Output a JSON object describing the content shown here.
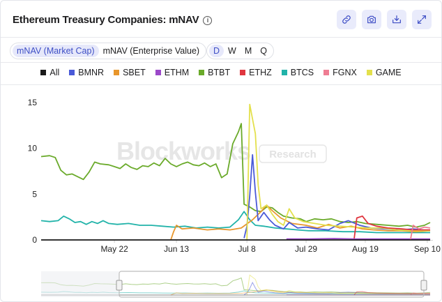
{
  "header": {
    "title": "Ethereum Treasury Companies: mNAV",
    "info_icon": "info-icon"
  },
  "toolbar": {
    "icons": [
      "link-icon",
      "camera-icon",
      "download-icon",
      "expand-icon"
    ]
  },
  "metric_toggle": {
    "options": [
      "mNAV (Market Cap)",
      "mNAV (Enterprise Value)"
    ],
    "selected": "mNAV (Market Cap)"
  },
  "interval_toggle": {
    "options": [
      "D",
      "W",
      "M",
      "Q"
    ],
    "selected": "D"
  },
  "legend": [
    {
      "label": "All",
      "color": "#1a1a1a"
    },
    {
      "label": "BMNR",
      "color": "#4a5ad8"
    },
    {
      "label": "SBET",
      "color": "#e8962c"
    },
    {
      "label": "ETHM",
      "color": "#9b48c9"
    },
    {
      "label": "BTBT",
      "color": "#6aaa2a"
    },
    {
      "label": "ETHZ",
      "color": "#e0363f"
    },
    {
      "label": "BTCS",
      "color": "#21b3a9"
    },
    {
      "label": "FGNX",
      "color": "#ef7d93"
    },
    {
      "label": "GAME",
      "color": "#e3e04c"
    }
  ],
  "watermark": {
    "brand": "Blockworks",
    "tag": "Research"
  },
  "chart_data": {
    "type": "line",
    "x_ticks": [
      "May 22",
      "Jun 13",
      "Jul 8",
      "Jul 29",
      "Aug 19",
      "Sep 10"
    ],
    "y_ticks": [
      "0",
      "5",
      "10",
      "15"
    ],
    "ylim": [
      0,
      15
    ],
    "x_domain": [
      "Apr 26",
      "Sep 12"
    ],
    "grid": false,
    "series": [
      {
        "name": "BTBT",
        "color": "#6aaa2a",
        "points": [
          [
            "Apr 26",
            9.1
          ],
          [
            "Apr 29",
            9.2
          ],
          [
            "May 1",
            9.0
          ],
          [
            "May 3",
            7.6
          ],
          [
            "May 5",
            7.1
          ],
          [
            "May 7",
            7.2
          ],
          [
            "May 9",
            6.9
          ],
          [
            "May 11",
            6.6
          ],
          [
            "May 13",
            7.4
          ],
          [
            "May 15",
            8.5
          ],
          [
            "May 17",
            8.3
          ],
          [
            "May 20",
            8.2
          ],
          [
            "May 22",
            8.0
          ],
          [
            "May 24",
            7.8
          ],
          [
            "May 26",
            8.3
          ],
          [
            "May 28",
            7.9
          ],
          [
            "May 30",
            7.7
          ],
          [
            "Jun 1",
            8.1
          ],
          [
            "Jun 3",
            8.0
          ],
          [
            "Jun 5",
            8.4
          ],
          [
            "Jun 7",
            8.1
          ],
          [
            "Jun 9",
            8.9
          ],
          [
            "Jun 11",
            8.3
          ],
          [
            "Jun 13",
            8.0
          ],
          [
            "Jun 15",
            8.3
          ],
          [
            "Jun 17",
            8.5
          ],
          [
            "Jun 19",
            8.2
          ],
          [
            "Jun 21",
            8.1
          ],
          [
            "Jun 23",
            8.4
          ],
          [
            "Jun 25",
            8.0
          ],
          [
            "Jun 27",
            8.3
          ],
          [
            "Jun 29",
            6.8
          ],
          [
            "Jul 1",
            7.2
          ],
          [
            "Jul 3",
            10.5
          ],
          [
            "Jul 5",
            11.8
          ],
          [
            "Jul 6",
            12.7
          ],
          [
            "Jul 7",
            3.9
          ],
          [
            "Jul 9",
            3.6
          ],
          [
            "Jul 11",
            3.2
          ],
          [
            "Jul 13",
            3.1
          ],
          [
            "Jul 15",
            3.6
          ],
          [
            "Jul 17",
            3.5
          ],
          [
            "Jul 19",
            3.0
          ],
          [
            "Jul 21",
            2.6
          ],
          [
            "Jul 24",
            2.4
          ],
          [
            "Jul 27",
            2.3
          ],
          [
            "Jul 29",
            2.0
          ],
          [
            "Aug 1",
            2.3
          ],
          [
            "Aug 4",
            2.2
          ],
          [
            "Aug 7",
            2.3
          ],
          [
            "Aug 10",
            2.0
          ],
          [
            "Aug 13",
            1.9
          ],
          [
            "Aug 16",
            2.0
          ],
          [
            "Aug 19",
            1.8
          ],
          [
            "Aug 23",
            1.7
          ],
          [
            "Aug 27",
            1.6
          ],
          [
            "Aug 31",
            1.5
          ],
          [
            "Sep 3",
            1.6
          ],
          [
            "Sep 6",
            1.4
          ],
          [
            "Sep 9",
            1.6
          ],
          [
            "Sep 11",
            1.9
          ]
        ]
      },
      {
        "name": "BTCS",
        "color": "#21b3a9",
        "points": [
          [
            "Apr 26",
            2.1
          ],
          [
            "Apr 29",
            2.0
          ],
          [
            "May 2",
            2.1
          ],
          [
            "May 4",
            2.6
          ],
          [
            "May 6",
            2.3
          ],
          [
            "May 8",
            1.9
          ],
          [
            "May 10",
            2.0
          ],
          [
            "May 12",
            1.7
          ],
          [
            "May 14",
            2.0
          ],
          [
            "May 16",
            1.8
          ],
          [
            "May 18",
            2.1
          ],
          [
            "May 20",
            1.8
          ],
          [
            "May 23",
            1.7
          ],
          [
            "May 27",
            1.8
          ],
          [
            "May 31",
            1.6
          ],
          [
            "Jun 4",
            1.6
          ],
          [
            "Jun 8",
            1.5
          ],
          [
            "Jun 12",
            1.4
          ],
          [
            "Jun 16",
            1.5
          ],
          [
            "Jun 20",
            1.3
          ],
          [
            "Jun 24",
            1.4
          ],
          [
            "Jun 28",
            1.3
          ],
          [
            "Jul 2",
            1.4
          ],
          [
            "Jul 5",
            2.2
          ],
          [
            "Jul 7",
            3.1
          ],
          [
            "Jul 9",
            2.2
          ],
          [
            "Jul 11",
            1.6
          ],
          [
            "Jul 14",
            1.5
          ],
          [
            "Jul 18",
            1.3
          ],
          [
            "Jul 22",
            1.2
          ],
          [
            "Jul 26",
            1.1
          ],
          [
            "Jul 30",
            1.0
          ],
          [
            "Aug 5",
            1.0
          ],
          [
            "Aug 11",
            0.9
          ],
          [
            "Aug 17",
            0.9
          ],
          [
            "Aug 23",
            0.8
          ],
          [
            "Aug 29",
            0.8
          ],
          [
            "Sep 4",
            0.8
          ],
          [
            "Sep 11",
            0.8
          ]
        ]
      },
      {
        "name": "SBET",
        "color": "#e8962c",
        "points": [
          [
            "Jun 11",
            0.0
          ],
          [
            "Jun 12",
            0.9
          ],
          [
            "Jun 13",
            1.6
          ],
          [
            "Jun 15",
            1.2
          ],
          [
            "Jun 19",
            1.3
          ],
          [
            "Jun 24",
            1.1
          ],
          [
            "Jun 28",
            1.2
          ],
          [
            "Jul 2",
            1.1
          ],
          [
            "Jul 6",
            1.3
          ],
          [
            "Jul 10",
            2.2
          ],
          [
            "Jul 13",
            3.1
          ],
          [
            "Jul 15",
            3.8
          ],
          [
            "Jul 17",
            3.2
          ],
          [
            "Jul 20",
            2.4
          ],
          [
            "Jul 24",
            1.8
          ],
          [
            "Jul 29",
            1.6
          ],
          [
            "Aug 2",
            1.3
          ],
          [
            "Aug 6",
            1.7
          ],
          [
            "Aug 10",
            1.3
          ],
          [
            "Aug 14",
            1.5
          ],
          [
            "Aug 18",
            1.2
          ],
          [
            "Aug 22",
            1.1
          ],
          [
            "Aug 27",
            1.0
          ],
          [
            "Sep 1",
            1.0
          ],
          [
            "Sep 6",
            0.9
          ],
          [
            "Sep 11",
            1.0
          ]
        ]
      },
      {
        "name": "BMNR",
        "color": "#4a5ad8",
        "points": [
          [
            "Jul 7",
            0.2
          ],
          [
            "Jul 8",
            1.5
          ],
          [
            "Jul 9",
            4.8
          ],
          [
            "Jul 10",
            9.3
          ],
          [
            "Jul 11",
            5.2
          ],
          [
            "Jul 12",
            2.1
          ],
          [
            "Jul 14",
            3.0
          ],
          [
            "Jul 16",
            2.2
          ],
          [
            "Jul 18",
            1.6
          ],
          [
            "Jul 21",
            1.2
          ],
          [
            "Jul 23",
            1.9
          ],
          [
            "Jul 26",
            1.3
          ],
          [
            "Jul 29",
            1.4
          ],
          [
            "Aug 2",
            1.2
          ],
          [
            "Aug 6",
            1.1
          ],
          [
            "Aug 10",
            1.8
          ],
          [
            "Aug 13",
            2.1
          ],
          [
            "Aug 17",
            1.6
          ],
          [
            "Aug 21",
            1.3
          ],
          [
            "Aug 26",
            1.2
          ],
          [
            "Aug 31",
            1.1
          ],
          [
            "Sep 5",
            1.2
          ],
          [
            "Sep 11",
            1.0
          ]
        ]
      },
      {
        "name": "GAME",
        "color": "#e3e04c",
        "points": [
          [
            "Jul 8",
            0.0
          ],
          [
            "Jul 9",
            14.8
          ],
          [
            "Jul 10",
            13.2
          ],
          [
            "Jul 11",
            11.6
          ],
          [
            "Jul 12",
            6.0
          ],
          [
            "Jul 13",
            3.4
          ],
          [
            "Jul 15",
            3.8
          ],
          [
            "Jul 17",
            2.8
          ],
          [
            "Jul 19",
            2.0
          ],
          [
            "Jul 21",
            1.6
          ],
          [
            "Jul 23",
            3.4
          ],
          [
            "Jul 25",
            2.4
          ],
          [
            "Jul 28",
            2.0
          ],
          [
            "Aug 1",
            1.8
          ],
          [
            "Aug 5",
            1.6
          ],
          [
            "Aug 10",
            1.5
          ],
          [
            "Aug 15",
            1.4
          ],
          [
            "Aug 20",
            1.3
          ],
          [
            "Aug 25",
            1.3
          ],
          [
            "Aug 30",
            1.1
          ],
          [
            "Sep 4",
            1.0
          ],
          [
            "Sep 11",
            1.0
          ]
        ]
      },
      {
        "name": "ETHZ",
        "color": "#e0363f",
        "points": [
          [
            "Aug 15",
            0.0
          ],
          [
            "Aug 16",
            2.4
          ],
          [
            "Aug 18",
            2.6
          ],
          [
            "Aug 20",
            1.8
          ],
          [
            "Aug 23",
            1.5
          ],
          [
            "Aug 27",
            1.3
          ],
          [
            "Sep 1",
            1.2
          ],
          [
            "Sep 5",
            1.1
          ],
          [
            "Sep 11",
            1.1
          ]
        ]
      },
      {
        "name": "ETHM",
        "color": "#9b48c9",
        "points": [
          [
            "Jul 22",
            0.1
          ],
          [
            "Jul 30",
            0.1
          ],
          [
            "Aug 8",
            0.15
          ],
          [
            "Aug 16",
            0.1
          ],
          [
            "Aug 24",
            0.1
          ],
          [
            "Sep 1",
            0.1
          ],
          [
            "Sep 11",
            0.1
          ]
        ]
      },
      {
        "name": "FGNX",
        "color": "#ef7d93",
        "points": [
          [
            "Sep 4",
            0.0
          ],
          [
            "Sep 5",
            1.6
          ],
          [
            "Sep 7",
            1.2
          ],
          [
            "Sep 9",
            1.4
          ],
          [
            "Sep 11",
            1.3
          ]
        ]
      },
      {
        "name": "All",
        "color": "#1a1a1a",
        "points": [
          [
            "Apr 26",
            0.0
          ],
          [
            "Sep 11",
            0.0
          ]
        ]
      }
    ]
  }
}
